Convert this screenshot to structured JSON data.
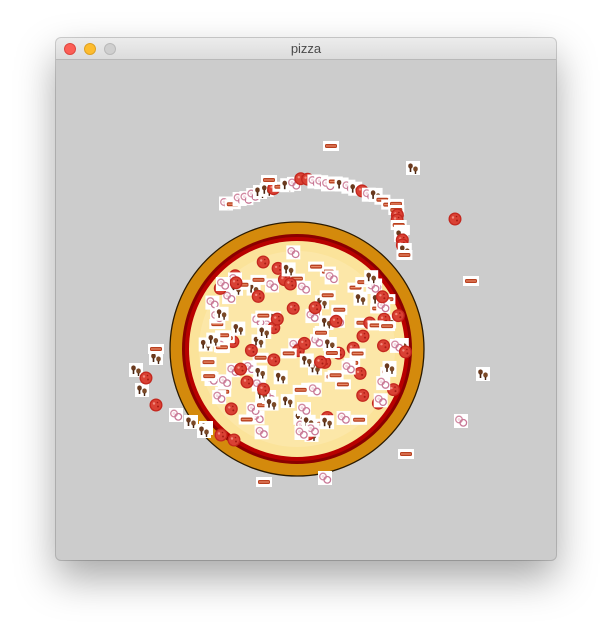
{
  "window": {
    "title": "pizza",
    "background": "#cccccc"
  },
  "pizza": {
    "crust_color": "#d48a0c",
    "sauce_color": "#b80000",
    "cheese_color": "#fbe39a"
  },
  "toppings": {
    "pepperoni": {
      "icon": "pepperoni-icon",
      "color": "#d3352a"
    },
    "mushroom": {
      "icon": "mushroom-icon",
      "color": "#6b3a1e"
    },
    "bacon": {
      "icon": "bacon-icon",
      "color": "#b8401f"
    },
    "onion": {
      "icon": "onion-icon",
      "color": "#e8b8c8"
    }
  }
}
